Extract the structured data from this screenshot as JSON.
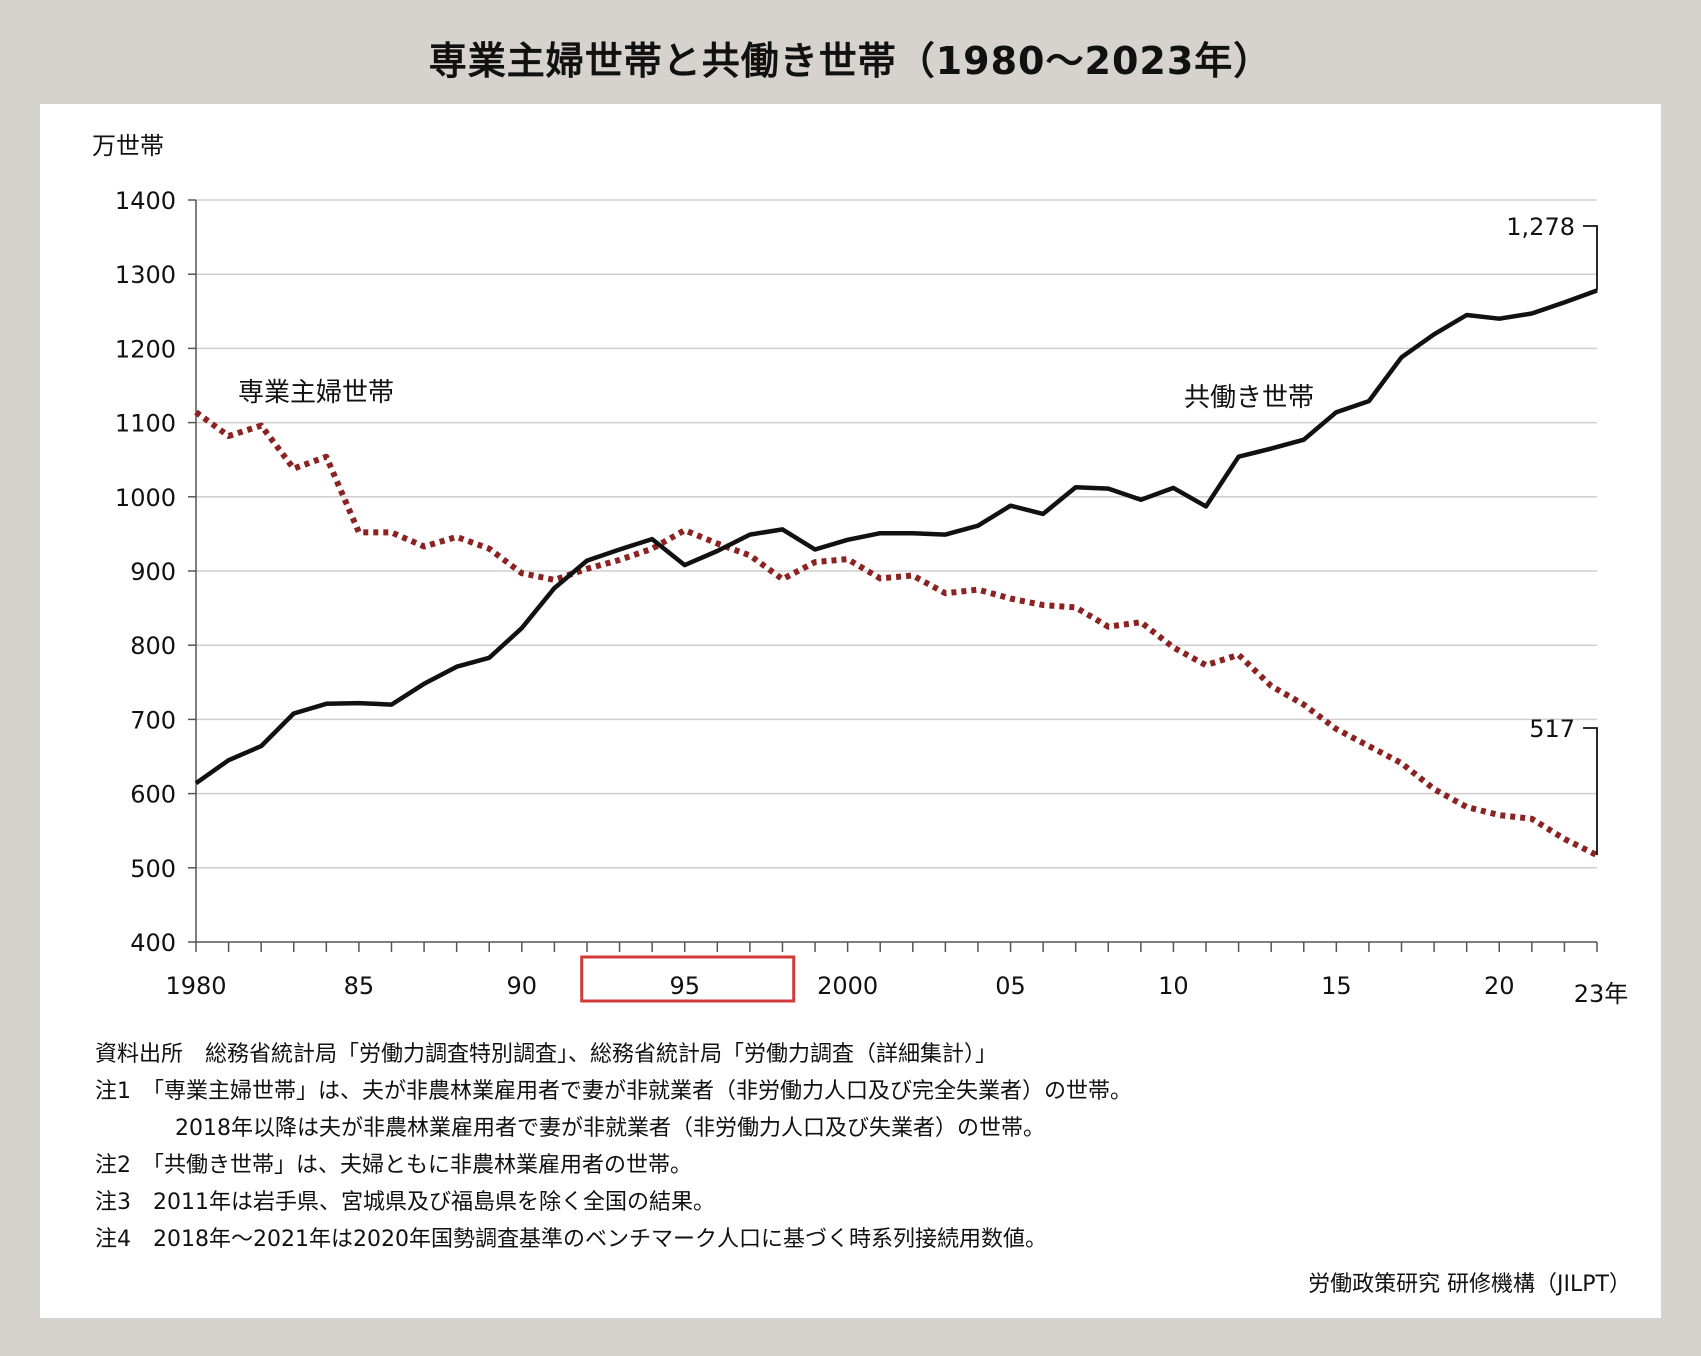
{
  "title": "専業主婦世帯と共働き世帯（1980〜2023年）",
  "chart_data": {
    "type": "line",
    "ylabel": "万世帯",
    "ylim": [
      400,
      1400
    ],
    "yticks": [
      400,
      500,
      600,
      700,
      800,
      900,
      1000,
      1100,
      1200,
      1300,
      1400
    ],
    "xlim": [
      1980,
      2023
    ],
    "xtick_labels": [
      {
        "year": 1980,
        "label": "1980"
      },
      {
        "year": 1985,
        "label": "85"
      },
      {
        "year": 1990,
        "label": "90"
      },
      {
        "year": 1995,
        "label": "95"
      },
      {
        "year": 2000,
        "label": "2000"
      },
      {
        "year": 2005,
        "label": "05"
      },
      {
        "year": 2010,
        "label": "10"
      },
      {
        "year": 2015,
        "label": "15"
      },
      {
        "year": 2020,
        "label": "20"
      },
      {
        "year": 2023,
        "label": "23年"
      }
    ],
    "highlight_x": 1995,
    "grid": "horizontal",
    "x": [
      1980,
      1981,
      1982,
      1983,
      1984,
      1985,
      1986,
      1987,
      1988,
      1989,
      1990,
      1991,
      1992,
      1993,
      1994,
      1995,
      1996,
      1997,
      1998,
      1999,
      2000,
      2001,
      2002,
      2003,
      2004,
      2005,
      2006,
      2007,
      2008,
      2009,
      2010,
      2011,
      2012,
      2013,
      2014,
      2015,
      2016,
      2017,
      2018,
      2019,
      2020,
      2021,
      2022,
      2023
    ],
    "series": [
      {
        "name": "専業主婦世帯",
        "color": "#8b2323",
        "style": "dotted",
        "values": [
          1114,
          1082,
          1096,
          1038,
          1054,
          952,
          952,
          933,
          946,
          930,
          897,
          888,
          903,
          915,
          930,
          955,
          937,
          921,
          889,
          912,
          916,
          890,
          894,
          870,
          875,
          863,
          854,
          851,
          825,
          831,
          797,
          773,
          787,
          745,
          720,
          687,
          664,
          641,
          606,
          582,
          571,
          566,
          539,
          517
        ]
      },
      {
        "name": "共働き世帯",
        "color": "#111111",
        "style": "solid",
        "values": [
          614,
          645,
          664,
          708,
          721,
          722,
          720,
          748,
          771,
          783,
          823,
          877,
          914,
          929,
          943,
          908,
          927,
          949,
          956,
          929,
          942,
          951,
          951,
          949,
          961,
          988,
          977,
          1013,
          1011,
          996,
          1012,
          987,
          1054,
          1065,
          1077,
          1114,
          1129,
          1188,
          1219,
          1245,
          1240,
          1247,
          1262,
          1278
        ]
      }
    ],
    "annotations": {
      "end_label_top": "1,278",
      "end_label_bottom": "517"
    }
  },
  "notes": [
    "資料出所　総務省統計局「労働力調査特別調査」、総務省統計局「労働力調査（詳細集計）」",
    "注1　「専業主婦世帯」は、夫が非農林業雇用者で妻が非就業者（非労働力人口及び完全失業者）の世帯。",
    "2018年以降は夫が非農林業雇用者で妻が非就業者（非労働力人口及び失業者）の世帯。",
    "注2　「共働き世帯」は、夫婦ともに非農林業雇用者の世帯。",
    "注3　2011年は岩手県、宮城県及び福島県を除く全国の結果。",
    "注4　2018年〜2021年は2020年国勢調査基準のベンチマーク人口に基づく時系列接続用数値。"
  ],
  "credit": "労働政策研究 研修機構（JILPT）"
}
